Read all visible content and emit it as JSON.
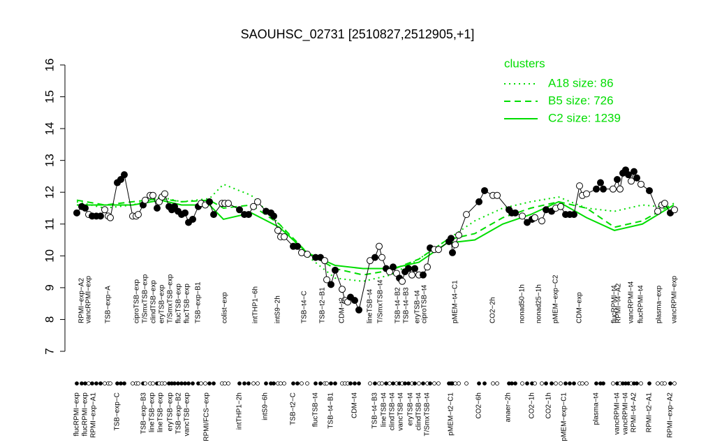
{
  "chart_data": {
    "type": "line",
    "title": "SAOUHSC_02731 [2510827,2512905,+1]",
    "ylim": [
      7,
      16
    ],
    "yticks": [
      7,
      8,
      9,
      10,
      11,
      12,
      13,
      14,
      15,
      16
    ],
    "xlim": [
      0,
      880
    ],
    "samples": {
      "x": [
        10,
        17,
        22,
        27,
        32,
        38,
        44,
        50,
        55,
        58,
        68,
        73,
        78,
        90,
        95,
        98,
        105,
        108,
        115,
        119,
        125,
        128,
        132,
        136,
        142,
        146,
        150,
        155,
        160,
        165,
        170,
        176,
        184,
        188,
        194,
        200,
        206,
        218,
        222,
        227,
        243,
        250,
        256,
        263,
        269,
        281,
        288,
        292,
        298,
        302,
        307,
        320,
        326,
        332,
        340,
        352,
        359,
        365,
        368,
        374,
        380,
        390,
        394,
        398,
        402,
        408,
        414,
        430,
        437,
        443,
        447,
        453,
        458,
        463,
        468,
        472,
        476,
        480,
        485,
        490,
        494,
        500,
        506,
        512,
        516,
        522,
        528,
        543,
        546,
        548,
        552,
        557,
        568,
        586,
        594,
        606,
        612,
        629,
        633,
        638,
        648,
        655,
        662,
        666,
        676,
        682,
        690,
        696,
        703,
        710,
        716,
        722,
        730,
        734,
        740,
        754,
        760,
        764,
        778,
        784,
        788,
        792,
        796,
        800,
        804,
        808,
        812,
        818,
        830,
        842,
        848,
        852,
        860,
        866
      ],
      "values": [
        11.35,
        11.55,
        11.5,
        11.3,
        11.25,
        11.25,
        11.25,
        11.45,
        11.25,
        11.2,
        12.3,
        12.4,
        12.55,
        11.25,
        11.25,
        11.3,
        11.6,
        11.75,
        11.9,
        11.9,
        11.5,
        11.7,
        11.85,
        11.95,
        11.55,
        11.45,
        11.55,
        11.4,
        11.3,
        11.35,
        11.05,
        11.15,
        11.55,
        11.65,
        11.6,
        11.7,
        11.3,
        11.65,
        11.65,
        11.65,
        11.45,
        11.3,
        11.3,
        11.55,
        11.7,
        11.4,
        11.35,
        11.25,
        10.8,
        10.6,
        10.6,
        10.3,
        10.3,
        10.1,
        10.05,
        9.95,
        9.95,
        9.85,
        9.25,
        9.1,
        9.55,
        8.95,
        8.6,
        8.55,
        8.7,
        8.6,
        8.3,
        9.85,
        9.95,
        10.3,
        9.95,
        9.6,
        9.5,
        9.65,
        9.45,
        9.3,
        9.2,
        9.5,
        9.6,
        9.4,
        9.6,
        9.4,
        9.4,
        9.65,
        10.25,
        10.2,
        10.2,
        10.45,
        10.55,
        10.1,
        10.35,
        10.65,
        11.3,
        11.7,
        12.05,
        11.9,
        11.9,
        11.45,
        11.35,
        11.35,
        11.25,
        11.05,
        11.15,
        11.2,
        11.1,
        11.45,
        11.4,
        11.5,
        11.55,
        11.3,
        11.3,
        11.3,
        12.2,
        11.9,
        11.95,
        12.1,
        12.3,
        12.1,
        12.1,
        12.4,
        12.1,
        12.6,
        12.7,
        12.55,
        12.35,
        12.65,
        12.45,
        12.25,
        12.05,
        11.4,
        11.6,
        11.65,
        11.35,
        11.45
      ],
      "filled": [
        1,
        1,
        1,
        0,
        1,
        1,
        1,
        0,
        0,
        0,
        1,
        1,
        1,
        0,
        0,
        0,
        1,
        0,
        0,
        0,
        1,
        0,
        0,
        0,
        1,
        1,
        1,
        1,
        1,
        1,
        1,
        1,
        1,
        0,
        0,
        1,
        1,
        0,
        0,
        0,
        1,
        1,
        1,
        0,
        0,
        1,
        1,
        1,
        0,
        0,
        0,
        1,
        1,
        0,
        0,
        1,
        1,
        0,
        0,
        1,
        1,
        0,
        0,
        0,
        1,
        1,
        1,
        0,
        1,
        0,
        0,
        1,
        0,
        1,
        0,
        1,
        0,
        1,
        1,
        0,
        1,
        0,
        1,
        0,
        1,
        0,
        0,
        1,
        1,
        1,
        0,
        0,
        0,
        1,
        1,
        0,
        0,
        1,
        1,
        1,
        0,
        1,
        1,
        0,
        0,
        1,
        1,
        0,
        0,
        1,
        1,
        1,
        0,
        0,
        0,
        1,
        1,
        1,
        0,
        1,
        0,
        1,
        1,
        1,
        0,
        1,
        1,
        0,
        1,
        0,
        0,
        0,
        1,
        0
      ]
    },
    "legend_title": "clusters",
    "series": [
      {
        "name": "A18 size: 86",
        "color": "#00dd00",
        "style": "dotted",
        "x": [
          10,
          50,
          90,
          130,
          160,
          200,
          220,
          260,
          300,
          340,
          380,
          420,
          460,
          500,
          540,
          580,
          620,
          660,
          700,
          740,
          780,
          820,
          865
        ],
        "values": [
          11.7,
          11.5,
          11.6,
          11.85,
          11.7,
          11.8,
          12.25,
          11.9,
          11.0,
          10.0,
          9.3,
          9.2,
          9.4,
          9.9,
          10.5,
          11.1,
          11.5,
          11.7,
          11.85,
          11.5,
          11.4,
          11.6,
          11.5
        ]
      },
      {
        "name": "B5 size: 726",
        "color": "#00dd00",
        "style": "dashed",
        "x": [
          10,
          50,
          90,
          130,
          160,
          200,
          220,
          260,
          300,
          340,
          380,
          420,
          460,
          500,
          540,
          580,
          620,
          660,
          700,
          740,
          780,
          820,
          865
        ],
        "values": [
          11.75,
          11.6,
          11.7,
          11.8,
          11.7,
          11.75,
          11.5,
          11.6,
          11.0,
          10.1,
          9.6,
          9.4,
          9.55,
          9.9,
          10.5,
          10.7,
          11.2,
          11.5,
          11.7,
          11.5,
          10.9,
          11.1,
          11.65
        ]
      },
      {
        "name": "C2 size: 1239",
        "color": "#00dd00",
        "style": "solid",
        "x": [
          10,
          50,
          90,
          130,
          160,
          200,
          220,
          260,
          300,
          340,
          380,
          420,
          460,
          500,
          540,
          580,
          620,
          660,
          700,
          740,
          780,
          820,
          865
        ],
        "values": [
          11.6,
          11.6,
          11.6,
          11.75,
          11.6,
          11.6,
          11.15,
          11.35,
          10.9,
          10.1,
          9.7,
          9.6,
          9.6,
          9.8,
          10.4,
          10.5,
          11.0,
          11.3,
          11.7,
          11.2,
          10.8,
          11.0,
          11.6
        ]
      }
    ],
    "top_labels": {
      "x": [
        17,
        27,
        55,
        96,
        108,
        120,
        132,
        144,
        156,
        168,
        184,
        222,
        266,
        298,
        336,
        362,
        390,
        430,
        445,
        470,
        482,
        498,
        508,
        552,
        606,
        648,
        672,
        696,
        730,
        780,
        786,
        804,
        818,
        844,
        866
      ],
      "labels": [
        "RPMI−exp−A2",
        "vancRPMI−exp",
        "TSB−exp−A",
        "ciproTSB−exp",
        "T/SmxTSB−exp",
        "clindTSB−exp",
        "eryTSB−exp",
        "T/SmxTSB−exp",
        "flucTSB−exp",
        "flucTSB−exp",
        "TSB−exp−B1",
        "colist−exp",
        "intTHP1−6h",
        "intS9−2h",
        "TSB−t4−C",
        "TSB−t2−B1",
        "CDM−t2",
        "lineTSB−t4",
        "T/SmxTSB−t4",
        "TSB−t4−B2",
        "TSB−t4−B3",
        "eryTSB−t4",
        "ciproTSB−t4",
        "pMEM−t4−C1",
        "CO2−2h",
        "nonad50−1h",
        "nonad25−1h",
        "pMEM−exp−C2",
        "CDM−exp",
        "flucRPMI−t4",
        "RPMI−t4−A2",
        "vancRPMI−t4",
        "flucRPMI−t4",
        "plasma−exp",
        "vancRPMI−exp"
      ]
    },
    "bottom_labels": {
      "x": [
        10,
        22,
        34,
        68,
        106,
        118,
        130,
        144,
        156,
        168,
        196,
        243,
        280,
        320,
        352,
        374,
        408,
        437,
        450,
        462,
        474,
        488,
        500,
        512,
        546,
        586,
        628,
        662,
        686,
        708,
        754,
        784,
        796,
        808,
        830,
        860
      ],
      "labels": [
        "flucRPMI−exp",
        "flucRPMI−exp",
        "RPMI−exp−A1",
        "TSB−exp−C",
        "TSB−exp−B3",
        "lineTSB−exp",
        "lineTSB−exp",
        "eryTSB−exp",
        "TSB−exp−B2",
        "vancTSB−exp",
        "RPMI/FCS−exp",
        "intTHP1−2h",
        "intS9−6h",
        "TSB−t2−C",
        "flucTSB−t4",
        "TSB−t4−B1",
        "CDM−t4",
        "TSB−t4−B3",
        "lineTSB−t4",
        "clindTSB−t4",
        "vancTSB−t4",
        "eryTSB−t4",
        "clindTSB−t4",
        "T/SmxTSB−t4",
        "pMEM−t2−C1",
        "CO2−6h",
        "anaer−2h",
        "CO2−1h",
        "CO2−1h",
        "pMEM−exp−C1",
        "plasma−t4",
        "vancRPMI−t4",
        "vancRPMI−t4",
        "RPMI−t4−A2",
        "RPMI−t2−A1",
        "RPMI−exp−A2"
      ]
    }
  }
}
